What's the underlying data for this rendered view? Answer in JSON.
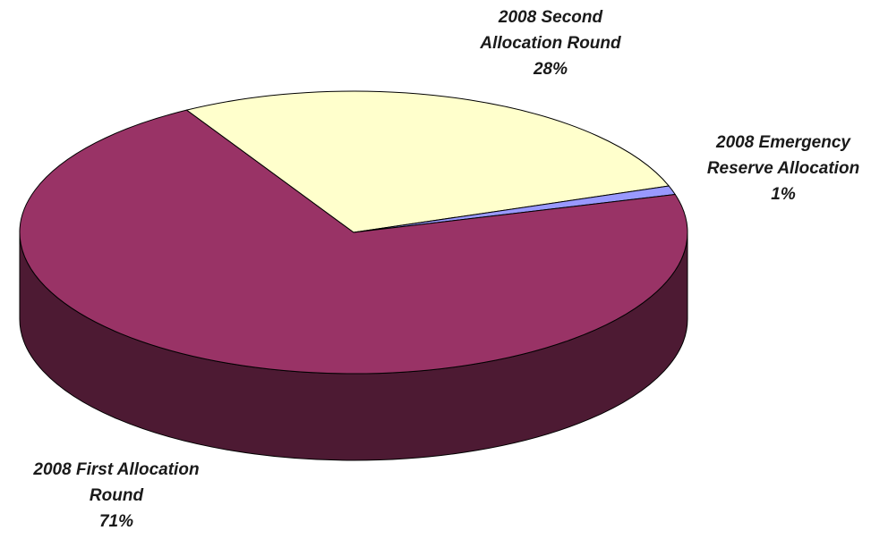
{
  "chart_data": {
    "type": "pie",
    "style": "3d",
    "start_angle_deg": 120,
    "direction": "clockwise",
    "slices": [
      {
        "name": "2008 Second Allocation Round",
        "value": 28,
        "label_lines": [
          "2008 Second",
          "Allocation Round",
          "28%"
        ],
        "color": "#FFFFCC",
        "side_color": "#B3B38F"
      },
      {
        "name": "2008 Emergency Reserve Allocation",
        "value": 1,
        "label_lines": [
          "2008 Emergency",
          "Reserve Allocation",
          "1%"
        ],
        "color": "#9999FF",
        "side_color": "#6B6BB3"
      },
      {
        "name": "2008 First Allocation Round",
        "value": 71,
        "label_lines": [
          "2008 First Allocation",
          "Round",
          "71%"
        ],
        "color": "#993366",
        "side_color": "#4D1A33"
      }
    ]
  }
}
